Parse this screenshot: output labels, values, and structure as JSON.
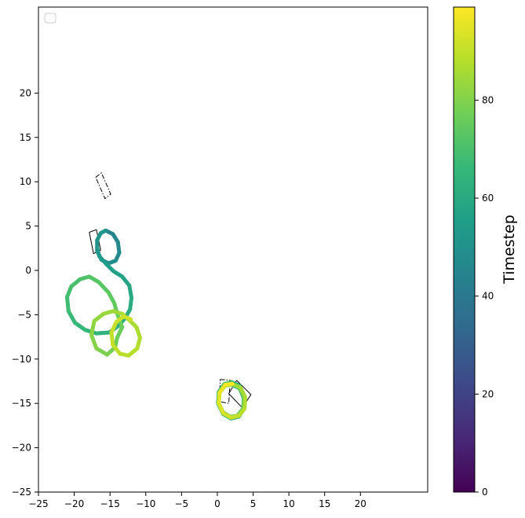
{
  "chart_data": {
    "type": "line",
    "title": "",
    "xlabel": "",
    "ylabel": "",
    "xlim": [
      -25,
      25
    ],
    "ylim": [
      -25,
      25
    ],
    "x_ticks": [
      -25,
      -20,
      -15,
      -10,
      -5,
      0,
      5,
      10,
      15,
      20
    ],
    "y_ticks": [
      -25,
      -20,
      -15,
      -10,
      -5,
      0,
      5,
      10,
      15,
      20
    ],
    "grid": false,
    "legend": {
      "placement": "top-left",
      "entries": []
    },
    "colorbar": {
      "label": "Timestep",
      "range": [
        0,
        99
      ],
      "ticks": [
        0,
        20,
        40,
        60,
        80
      ],
      "colormap": "viridis",
      "colors": [
        "#440154",
        "#482878",
        "#3e4989",
        "#31688e",
        "#26828e",
        "#1f9e89",
        "#35b779",
        "#6ece58",
        "#b5de2b",
        "#fde725"
      ]
    },
    "series": [
      {
        "t_start": 45,
        "t_end": 52,
        "points": [
          [
            -15.6,
            4.5
          ],
          [
            -14.6,
            4.1
          ],
          [
            -13.9,
            3.2
          ],
          [
            -13.7,
            2.0
          ],
          [
            -14.2,
            1.1
          ],
          [
            -15.2,
            0.8
          ],
          [
            -16.2,
            1.2
          ],
          [
            -16.8,
            2.2
          ],
          [
            -16.8,
            3.4
          ],
          [
            -16.3,
            4.2
          ],
          [
            -15.6,
            4.5
          ]
        ]
      },
      {
        "t_start": 52,
        "t_end": 62,
        "points": [
          [
            -16.8,
            2.6
          ],
          [
            -16.5,
            1.6
          ],
          [
            -15.5,
            0.7
          ],
          [
            -14.5,
            -0.1
          ],
          [
            -13.3,
            -0.7
          ],
          [
            -12.3,
            -1.7
          ],
          [
            -12.0,
            -3.1
          ],
          [
            -12.2,
            -4.4
          ],
          [
            -12.9,
            -5.4
          ]
        ]
      },
      {
        "t_start": 62,
        "t_end": 76,
        "points": [
          [
            -12.9,
            -5.4
          ],
          [
            -13.9,
            -6.3
          ],
          [
            -15.1,
            -7.0
          ],
          [
            -16.9,
            -7.1
          ],
          [
            -18.5,
            -6.7
          ],
          [
            -19.9,
            -5.9
          ],
          [
            -20.8,
            -4.6
          ],
          [
            -21.0,
            -3.0
          ],
          [
            -20.4,
            -1.8
          ],
          [
            -19.2,
            -1.0
          ],
          [
            -17.9,
            -0.7
          ],
          [
            -16.6,
            -1.3
          ],
          [
            -15.2,
            -2.5
          ],
          [
            -14.4,
            -3.7
          ],
          [
            -13.9,
            -5.1
          ],
          [
            -13.3,
            -6.4
          ]
        ]
      },
      {
        "t_start": 76,
        "t_end": 86,
        "points": [
          [
            -13.3,
            -6.4
          ],
          [
            -14.0,
            -7.6
          ],
          [
            -14.3,
            -8.7
          ],
          [
            -15.4,
            -9.5
          ],
          [
            -16.9,
            -8.8
          ],
          [
            -17.6,
            -7.3
          ],
          [
            -17.2,
            -5.7
          ],
          [
            -15.9,
            -4.9
          ],
          [
            -14.6,
            -4.6
          ],
          [
            -13.3,
            -4.9
          ],
          [
            -12.3,
            -5.6
          ]
        ]
      },
      {
        "t_start": 86,
        "t_end": 92,
        "points": [
          [
            -12.3,
            -5.6
          ],
          [
            -11.3,
            -6.4
          ],
          [
            -10.8,
            -7.6
          ],
          [
            -11.2,
            -8.8
          ],
          [
            -12.4,
            -9.6
          ],
          [
            -13.6,
            -9.4
          ],
          [
            -14.6,
            -8.4
          ],
          [
            -14.8,
            -7.0
          ],
          [
            -14.1,
            -5.8
          ],
          [
            -13.1,
            -5.2
          ],
          [
            -12.1,
            -5.5
          ]
        ]
      },
      {
        "t_start": 60,
        "t_end": 70,
        "points": [
          [
            2.0,
            -12.6
          ],
          [
            3.1,
            -13.0
          ],
          [
            3.8,
            -14.2
          ],
          [
            3.8,
            -15.5
          ],
          [
            3.0,
            -16.5
          ],
          [
            1.9,
            -16.7
          ],
          [
            0.8,
            -16.2
          ],
          [
            0.1,
            -15.0
          ],
          [
            0.2,
            -13.7
          ],
          [
            1.0,
            -12.8
          ],
          [
            2.0,
            -12.6
          ]
        ]
      },
      {
        "t_start": 70,
        "t_end": 84,
        "points": [
          [
            2.0,
            -12.9
          ],
          [
            3.1,
            -13.3
          ],
          [
            3.7,
            -14.4
          ],
          [
            3.6,
            -15.6
          ],
          [
            2.8,
            -16.4
          ],
          [
            1.8,
            -16.5
          ],
          [
            0.8,
            -16.0
          ],
          [
            0.2,
            -15.0
          ],
          [
            0.3,
            -13.8
          ],
          [
            1.1,
            -13.0
          ],
          [
            2.0,
            -12.9
          ]
        ]
      },
      {
        "t_start": 84,
        "t_end": 98,
        "points": [
          [
            2.1,
            -12.8
          ],
          [
            3.2,
            -13.2
          ],
          [
            3.9,
            -14.3
          ],
          [
            3.8,
            -15.6
          ],
          [
            3.0,
            -16.4
          ],
          [
            1.9,
            -16.6
          ],
          [
            0.8,
            -16.1
          ],
          [
            0.2,
            -15.0
          ],
          [
            0.3,
            -13.8
          ],
          [
            1.1,
            -12.9
          ],
          [
            2.1,
            -12.8
          ]
        ]
      }
    ],
    "outlines": [
      {
        "style": "solid",
        "points": [
          [
            -17.9,
            4.3
          ],
          [
            -16.9,
            4.6
          ],
          [
            -16.3,
            2.3
          ],
          [
            -17.3,
            1.9
          ],
          [
            -17.9,
            4.3
          ]
        ]
      },
      {
        "style": "dashdot",
        "points": [
          [
            -17.0,
            10.5
          ],
          [
            -16.2,
            11.0
          ],
          [
            -14.9,
            8.6
          ],
          [
            -15.7,
            8.1
          ],
          [
            -17.0,
            10.5
          ]
        ]
      },
      {
        "style": "solid",
        "points": [
          [
            2.7,
            -12.4
          ],
          [
            4.7,
            -14.0
          ],
          [
            3.5,
            -15.5
          ],
          [
            1.6,
            -13.9
          ],
          [
            2.7,
            -12.4
          ]
        ]
      },
      {
        "style": "dashdot",
        "points": [
          [
            0.4,
            -12.3
          ],
          [
            1.8,
            -12.4
          ],
          [
            1.6,
            -15.0
          ],
          [
            0.3,
            -14.8
          ],
          [
            0.4,
            -12.3
          ]
        ]
      }
    ]
  }
}
